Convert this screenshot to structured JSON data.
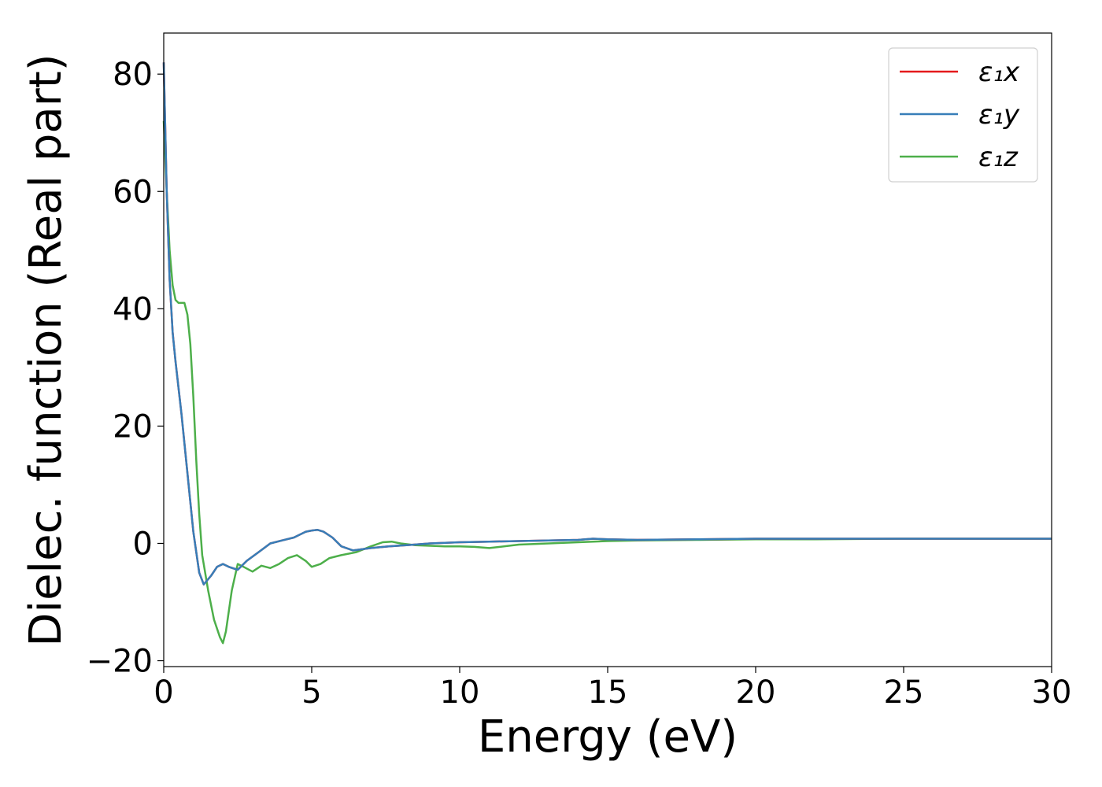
{
  "chart_data": {
    "type": "line",
    "title": "",
    "xlabel": "Energy (eV)",
    "ylabel": "Dielec. function (Real part)",
    "xlim": [
      0,
      30
    ],
    "ylim": [
      -21,
      87
    ],
    "xticks": [
      0,
      5,
      10,
      15,
      20,
      25,
      30
    ],
    "xtick_labels": [
      "0",
      "5",
      "10",
      "15",
      "20",
      "25",
      "30"
    ],
    "yticks": [
      -20,
      0,
      20,
      40,
      60,
      80
    ],
    "ytick_labels": [
      "−20",
      "0",
      "20",
      "40",
      "60",
      "80"
    ],
    "grid": false,
    "legend": "top-right",
    "series": [
      {
        "name": "ε₁x",
        "color": "#e41a1c",
        "x": [
          0,
          0.1,
          0.2,
          0.3,
          0.4,
          0.6,
          0.8,
          1.0,
          1.2,
          1.35,
          1.6,
          1.8,
          2.0,
          2.2,
          2.5,
          2.8,
          3.2,
          3.6,
          4.0,
          4.4,
          4.8,
          5.0,
          5.2,
          5.4,
          5.7,
          6.0,
          6.4,
          7.0,
          7.6,
          8.2,
          9.0,
          10.0,
          11.0,
          12.0,
          13.0,
          14.0,
          14.5,
          15.0,
          16.0,
          18.0,
          20.0,
          22.0,
          25.0,
          28.0,
          30.0
        ],
        "y": [
          82,
          60,
          45,
          36,
          31,
          22,
          12,
          2,
          -5,
          -7,
          -5.5,
          -4,
          -3.5,
          -4,
          -4.5,
          -3,
          -1.5,
          0,
          0.5,
          1,
          2,
          2.2,
          2.3,
          2,
          1,
          -0.5,
          -1.2,
          -0.8,
          -0.5,
          -0.3,
          0,
          0.2,
          0.3,
          0.4,
          0.5,
          0.6,
          0.8,
          0.7,
          0.6,
          0.7,
          0.8,
          0.8,
          0.8,
          0.8,
          0.8
        ]
      },
      {
        "name": "ε₁y",
        "color": "#377eb8",
        "x": [
          0,
          0.1,
          0.2,
          0.3,
          0.4,
          0.6,
          0.8,
          1.0,
          1.2,
          1.35,
          1.6,
          1.8,
          2.0,
          2.2,
          2.5,
          2.8,
          3.2,
          3.6,
          4.0,
          4.4,
          4.8,
          5.0,
          5.2,
          5.4,
          5.7,
          6.0,
          6.4,
          7.0,
          7.6,
          8.2,
          9.0,
          10.0,
          11.0,
          12.0,
          13.0,
          14.0,
          14.5,
          15.0,
          16.0,
          18.0,
          20.0,
          22.0,
          25.0,
          28.0,
          30.0
        ],
        "y": [
          82,
          60,
          45,
          36,
          31,
          22,
          12,
          2,
          -5,
          -7,
          -5.5,
          -4,
          -3.5,
          -4,
          -4.5,
          -3,
          -1.5,
          0,
          0.5,
          1,
          2,
          2.2,
          2.3,
          2,
          1,
          -0.5,
          -1.2,
          -0.8,
          -0.5,
          -0.3,
          0,
          0.2,
          0.3,
          0.4,
          0.5,
          0.6,
          0.8,
          0.7,
          0.6,
          0.7,
          0.8,
          0.8,
          0.8,
          0.8,
          0.8
        ]
      },
      {
        "name": "ε₁z",
        "color": "#4daf4a",
        "x": [
          0,
          0.1,
          0.2,
          0.3,
          0.4,
          0.5,
          0.7,
          0.8,
          0.9,
          1.0,
          1.1,
          1.2,
          1.3,
          1.5,
          1.7,
          1.9,
          2.0,
          2.1,
          2.3,
          2.5,
          2.7,
          3.0,
          3.3,
          3.6,
          3.9,
          4.2,
          4.5,
          4.8,
          5.0,
          5.3,
          5.6,
          6.0,
          6.5,
          7.0,
          7.4,
          7.7,
          8.0,
          8.5,
          9.0,
          9.5,
          10.0,
          10.5,
          11.0,
          12.0,
          13.0,
          14.0,
          15.0,
          16.0,
          18.0,
          20.0,
          22.0,
          25.0,
          28.0,
          30.0
        ],
        "y": [
          72,
          60,
          50,
          44,
          41.5,
          41,
          41,
          39,
          34,
          25,
          14,
          5,
          -2,
          -8,
          -13,
          -16,
          -17,
          -15,
          -8,
          -3.5,
          -4,
          -4.8,
          -3.8,
          -4.2,
          -3.5,
          -2.5,
          -2,
          -3,
          -4,
          -3.5,
          -2.5,
          -2,
          -1.5,
          -0.5,
          0.2,
          0.3,
          0,
          -0.3,
          -0.4,
          -0.5,
          -0.5,
          -0.6,
          -0.8,
          -0.2,
          0,
          0.2,
          0.4,
          0.5,
          0.6,
          0.7,
          0.7,
          0.8,
          0.8,
          0.8
        ]
      }
    ]
  }
}
